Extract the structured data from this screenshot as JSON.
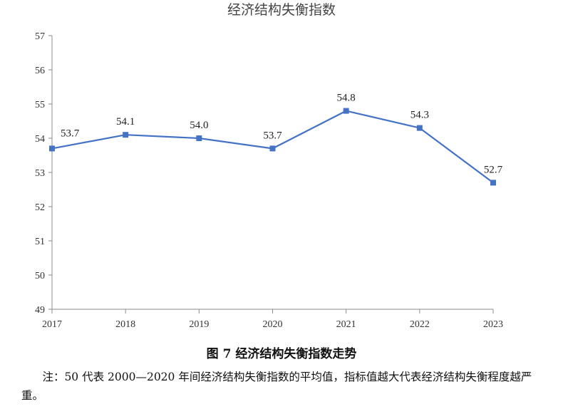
{
  "chart_data": {
    "type": "line",
    "title": "经济结构失衡指数",
    "categories": [
      "2017",
      "2018",
      "2019",
      "2020",
      "2021",
      "2022",
      "2023"
    ],
    "series": [
      {
        "values": [
          53.7,
          54.1,
          54.0,
          53.7,
          54.8,
          54.3,
          52.7
        ],
        "labels": [
          "53.7",
          "54.1",
          "54.0",
          "53.7",
          "54.8",
          "54.3",
          "52.7"
        ],
        "color": "#4472C4"
      }
    ],
    "ylim": [
      49,
      57
    ],
    "yticks": [
      "49",
      "50",
      "51",
      "52",
      "53",
      "54",
      "55",
      "56",
      "57"
    ],
    "grid": false,
    "axis_color": "#8c8c8c"
  },
  "figure": {
    "caption": "图 7  经济结构失衡指数走势",
    "note": "注：50 代表 2000—2020 年间经济结构失衡指数的平均值，指标值越大代表经济结构失衡程度越严重。"
  }
}
